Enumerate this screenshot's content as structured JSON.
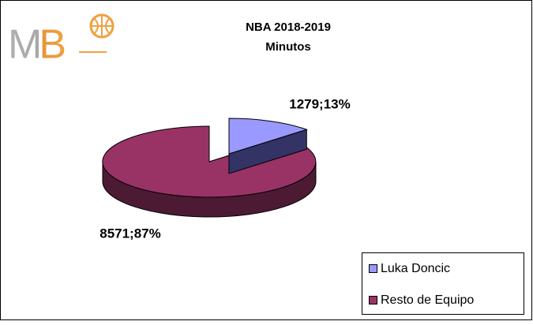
{
  "logo": "MB",
  "chart_data": {
    "type": "pie3d",
    "title": [
      "NBA 2018-2019",
      "Minutos"
    ],
    "categories": [
      "Luka Doncic",
      "Resto de Equipo"
    ],
    "values": [
      1279,
      8571
    ],
    "value_labels": [
      "1279;13%",
      "8571;87%"
    ],
    "colors": [
      "#9999ff",
      "#993366"
    ],
    "side_colors": [
      "#333366",
      "#4d1a33"
    ],
    "legend": "bottom-right"
  }
}
